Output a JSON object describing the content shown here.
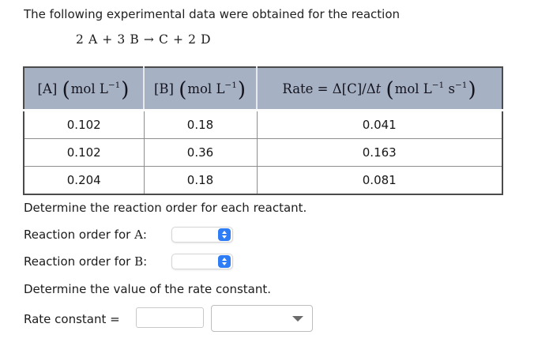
{
  "page": {
    "title": "The following experimental data were obtained for the reaction",
    "equation": "2 A + 3 B → C + 2 D"
  },
  "table": {
    "headers": [
      {
        "label": "[A] (mol L⁻¹)",
        "segments": [
          {
            "t": "[A] "
          },
          {
            "t": "(",
            "style": "paren"
          },
          {
            "t": "mol L"
          },
          {
            "t": "−1",
            "style": "sup"
          },
          {
            "t": ")",
            "style": "paren"
          }
        ]
      },
      {
        "label": "[B] (mol L⁻¹)",
        "segments": [
          {
            "t": "[B] "
          },
          {
            "t": "(",
            "style": "paren"
          },
          {
            "t": "mol L"
          },
          {
            "t": "−1",
            "style": "sup"
          },
          {
            "t": ")",
            "style": "paren"
          }
        ]
      },
      {
        "label": "Rate = Δ[C]/Δt (mol L⁻¹ s⁻¹)",
        "segments": [
          {
            "t": "Rate = Δ[C]/Δ"
          },
          {
            "t": "t",
            "style": "italic"
          },
          {
            "t": " "
          },
          {
            "t": "(",
            "style": "paren"
          },
          {
            "t": "mol L"
          },
          {
            "t": "−1",
            "style": "sup"
          },
          {
            "t": " s"
          },
          {
            "t": "−1",
            "style": "sup"
          },
          {
            "t": ")",
            "style": "paren"
          }
        ]
      }
    ],
    "rows": [
      [
        "0.102",
        "0.18",
        "0.041"
      ],
      [
        "0.102",
        "0.36",
        "0.163"
      ],
      [
        "0.204",
        "0.18",
        "0.081"
      ]
    ]
  },
  "questions": {
    "prompt_orders": "Determine the reaction order for each reactant.",
    "order_a": {
      "prefix": "Reaction order for ",
      "symbol": "A",
      "suffix": ":",
      "selected_value": ""
    },
    "order_b": {
      "prefix": "Reaction order for ",
      "symbol": "B",
      "suffix": ":",
      "selected_value": ""
    },
    "prompt_rate": "Determine the value of the rate constant.",
    "rate_constant": {
      "label": "Rate constant =",
      "value": "",
      "unit_selected": ""
    }
  },
  "colors": {
    "header_bg": "#a6b1c3",
    "select_accent": "#2e7cf6",
    "table_border": "#4b4b4b"
  }
}
